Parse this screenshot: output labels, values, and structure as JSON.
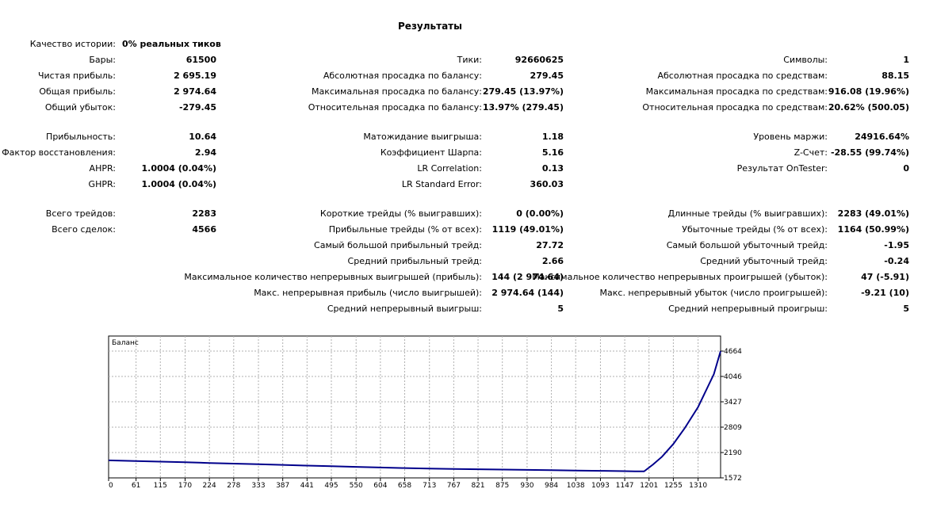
{
  "report": {
    "title": "Результаты",
    "history_quality": {
      "label": "Качество истории:",
      "value": "0% реальных тиков"
    },
    "col1": [
      {
        "label": "Бары:",
        "value": "61500"
      },
      {
        "label": "Чистая прибыль:",
        "value": "2 695.19"
      },
      {
        "label": "Общая прибыль:",
        "value": "2 974.64"
      },
      {
        "label": "Общий убыток:",
        "value": "-279.45"
      },
      {
        "label": "Прибыльность:",
        "value": "10.64"
      },
      {
        "label": "Фактор восстановления:",
        "value": "2.94"
      },
      {
        "label": "AHPR:",
        "value": "1.0004 (0.04%)"
      },
      {
        "label": "GHPR:",
        "value": "1.0004 (0.04%)"
      },
      {
        "label": "Всего трейдов:",
        "value": "2283"
      },
      {
        "label": "Всего сделок:",
        "value": "4566"
      }
    ],
    "col2": [
      {
        "label": "Тики:",
        "value": "92660625"
      },
      {
        "label": "Абсолютная просадка по балансу:",
        "value": "279.45"
      },
      {
        "label": "Максимальная просадка по балансу:",
        "value": "279.45 (13.97%)"
      },
      {
        "label": "Относительная просадка по балансу:",
        "value": "13.97% (279.45)"
      },
      {
        "label": "Матожидание выигрыша:",
        "value": "1.18"
      },
      {
        "label": "Коэффициент Шарпа:",
        "value": "5.16"
      },
      {
        "label": "LR Correlation:",
        "value": "0.13"
      },
      {
        "label": "LR Standard Error:",
        "value": "360.03"
      },
      {
        "label": "Короткие трейды (% выигравших):",
        "value": "0 (0.00%)"
      },
      {
        "label": "Прибыльные трейды (% от всех):",
        "value": "1119 (49.01%)"
      },
      {
        "label": "Самый большой прибыльный трейд:",
        "value": "27.72"
      },
      {
        "label": "Средний прибыльный трейд:",
        "value": "2.66"
      },
      {
        "label": "Максимальное количество непрерывных выигрышей (прибыль):",
        "value": "144 (2 974.64)"
      },
      {
        "label": "Макс. непрерывная прибыль (число выигрышей):",
        "value": "2 974.64 (144)"
      },
      {
        "label": "Средний непрерывный выигрыш:",
        "value": "5"
      }
    ],
    "col3": [
      {
        "label": "Символы:",
        "value": "1"
      },
      {
        "label": "Абсолютная просадка по средствам:",
        "value": "88.15"
      },
      {
        "label": "Максимальная просадка по средствам:",
        "value": "916.08 (19.96%)"
      },
      {
        "label": "Относительная просадка по средствам:",
        "value": "20.62% (500.05)"
      },
      {
        "label": "Уровень маржи:",
        "value": "24916.64%"
      },
      {
        "label": "Z-Счет:",
        "value": "-28.55 (99.74%)"
      },
      {
        "label": "Результат OnTester:",
        "value": "0"
      },
      {
        "label": "Длинные трейды (% выигравших):",
        "value": "2283 (49.01%)"
      },
      {
        "label": "Убыточные трейды (% от всех):",
        "value": "1164 (50.99%)"
      },
      {
        "label": "Самый большой убыточный трейд:",
        "value": "-1.95"
      },
      {
        "label": "Средний убыточный трейд:",
        "value": "-0.24"
      },
      {
        "label": "Максимальное количество непрерывных проигрышей (убыток):",
        "value": "47 (-5.91)"
      },
      {
        "label": "Макс. непрерывный убыток (число проигрышей):",
        "value": "-9.21 (10)"
      },
      {
        "label": "Средний непрерывный проигрыш:",
        "value": "5"
      }
    ]
  },
  "chart_data": {
    "type": "line",
    "title": "Баланс",
    "xlabel": "",
    "ylabel": "",
    "x_ticks": [
      "0",
      "61",
      "115",
      "170",
      "224",
      "278",
      "333",
      "387",
      "441",
      "495",
      "550",
      "604",
      "658",
      "713",
      "767",
      "821",
      "875",
      "930",
      "984",
      "1038",
      "1093",
      "1147",
      "1201",
      "1255",
      "1310"
    ],
    "y_ticks": [
      "4664",
      "4046",
      "3427",
      "2809",
      "2190",
      "1572"
    ],
    "xlim": [
      0,
      1360
    ],
    "ylim": [
      1572,
      4664
    ],
    "grid": true,
    "series": [
      {
        "name": "Баланс",
        "color": "#00008b",
        "x": [
          0,
          61,
          115,
          170,
          224,
          278,
          333,
          387,
          441,
          495,
          550,
          604,
          658,
          713,
          767,
          821,
          875,
          930,
          984,
          1038,
          1093,
          1147,
          1170,
          1190,
          1210,
          1230,
          1255,
          1280,
          1310,
          1345,
          1360
        ],
        "y": [
          2000,
          1984,
          1968,
          1952,
          1936,
          1920,
          1904,
          1888,
          1872,
          1856,
          1840,
          1826,
          1812,
          1800,
          1790,
          1782,
          1775,
          1768,
          1760,
          1752,
          1744,
          1736,
          1732,
          1730,
          1900,
          2090,
          2400,
          2780,
          3300,
          4100,
          4664
        ]
      }
    ]
  }
}
